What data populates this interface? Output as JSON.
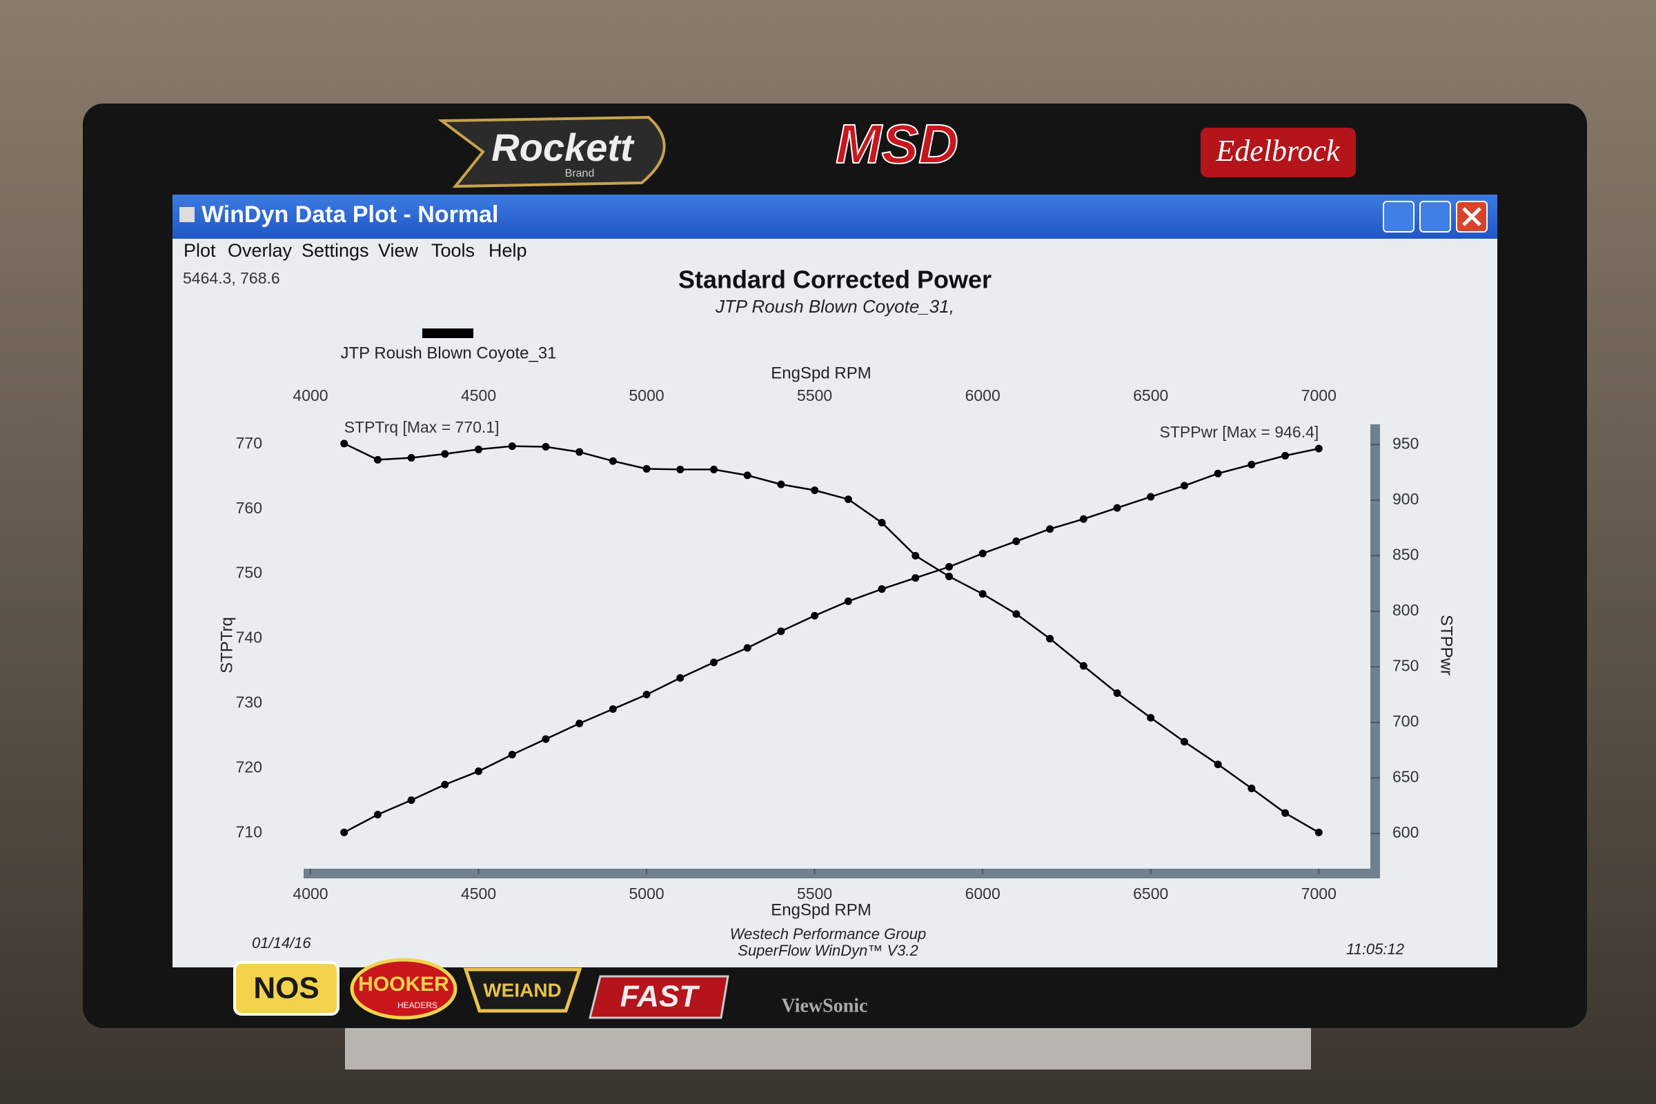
{
  "window": {
    "title": "WinDyn Data Plot - Normal",
    "menu": [
      "Plot",
      "Overlay",
      "Settings",
      "View",
      "Tools",
      "Help"
    ],
    "cursor_readout": "5464.3, 768.6"
  },
  "chart_data": {
    "type": "line",
    "title": "Standard Corrected Power",
    "subtitle": "JTP Roush Blown Coyote_31,",
    "legend": "JTP Roush Blown Coyote_31",
    "legend_color": "#000000",
    "x_label": "EngSpd RPM",
    "torque_max_label": "STPTrq [Max = 770.1]",
    "power_max_label": "STPPwr [Max = 946.4]",
    "x": [
      4100,
      4200,
      4300,
      4400,
      4500,
      4600,
      4700,
      4800,
      4900,
      5000,
      5100,
      5200,
      5300,
      5400,
      5500,
      5600,
      5700,
      5800,
      5900,
      6000,
      6100,
      6200,
      6300,
      6400,
      6500,
      6600,
      6700,
      6800,
      6900,
      7000
    ],
    "series": [
      {
        "name": "STPTrq",
        "color": "#000000",
        "values": [
          770.1,
          767.6,
          767.9,
          768.5,
          769.2,
          769.7,
          769.6,
          768.8,
          767.4,
          766.2,
          766.1,
          766.1,
          765.2,
          763.8,
          762.9,
          761.5,
          757.9,
          752.8,
          749.6,
          746.9,
          743.8,
          740.0,
          735.8,
          731.6,
          727.8,
          724.1,
          720.6,
          716.9,
          713.1,
          710.1
        ]
      },
      {
        "name": "STPPwr",
        "color": "#000000",
        "axis": "y2",
        "values": [
          601,
          617,
          630,
          644,
          656,
          671,
          685,
          699,
          712,
          725,
          740,
          754,
          767,
          782,
          796,
          809,
          820,
          830,
          840,
          852,
          863,
          874,
          883,
          893,
          903,
          913,
          924,
          932,
          940,
          946.4
        ]
      }
    ],
    "xlim": [
      4000,
      7100
    ],
    "xticks": [
      4000,
      4500,
      5000,
      5500,
      6000,
      6500,
      7000
    ],
    "ylim": [
      706,
      772
    ],
    "yticks": [
      710,
      720,
      730,
      740,
      750,
      760,
      770
    ],
    "y2lim": [
      577,
      962
    ],
    "y2ticks": [
      600,
      650,
      700,
      750,
      800,
      850,
      900,
      950
    ],
    "grid": false
  },
  "footer": {
    "date": "01/14/16",
    "company": "Westech Performance Group",
    "software": "SuperFlow WinDyn™ V3.2",
    "time": "11:05:12"
  },
  "bezel": {
    "top_logos": [
      "Rockett",
      "Brand",
      "MSD",
      "Edelbrock"
    ],
    "bottom_logos": [
      "NOS",
      "HOOKER",
      "HEADERS",
      "WEIAND",
      "FAST"
    ],
    "brand": "ViewSonic"
  }
}
